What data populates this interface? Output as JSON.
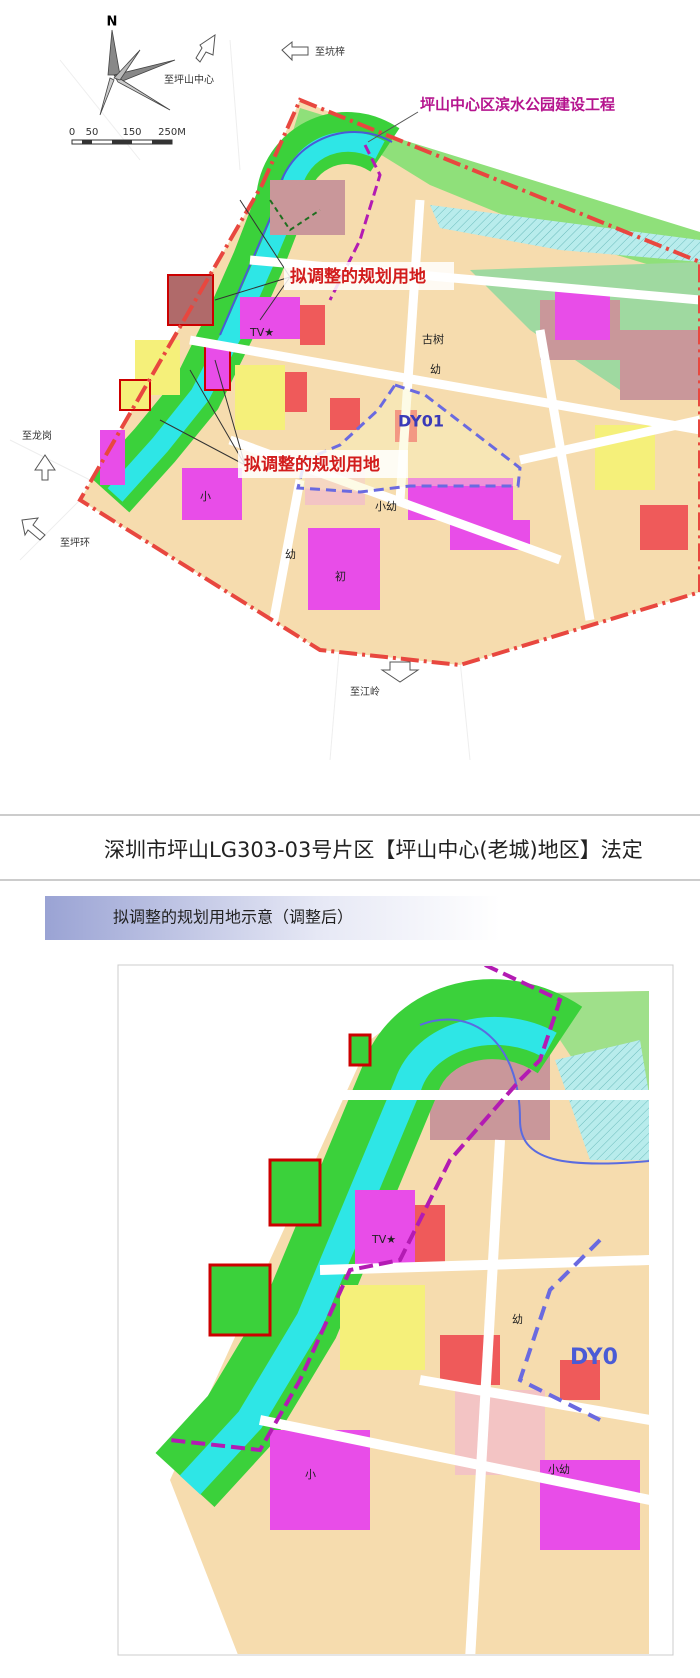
{
  "map_top": {
    "compass": "N",
    "destinations": [
      "至坪山中心",
      "至坑梓",
      "至龙岗",
      "至坪环",
      "至江岭"
    ],
    "scale_labels": [
      "0",
      "50",
      "150",
      "250M"
    ],
    "project_title": "坪山中心区滨水公园建设工程",
    "callouts": [
      "拟调整的规划用地",
      "拟调整的规划用地"
    ],
    "zone": "DY01",
    "labels": [
      "TV★",
      "古树",
      "幼",
      "小",
      "初",
      "小幼",
      "幼"
    ]
  },
  "header": {
    "title": "深圳市坪山LG303-03号片区【坪山中心(老城)地区】法定"
  },
  "section": {
    "title": "拟调整的规划用地示意（调整后）"
  },
  "map_bottom": {
    "zone": "DY0",
    "labels": [
      "TV★",
      "幼",
      "小",
      "小幼"
    ]
  }
}
